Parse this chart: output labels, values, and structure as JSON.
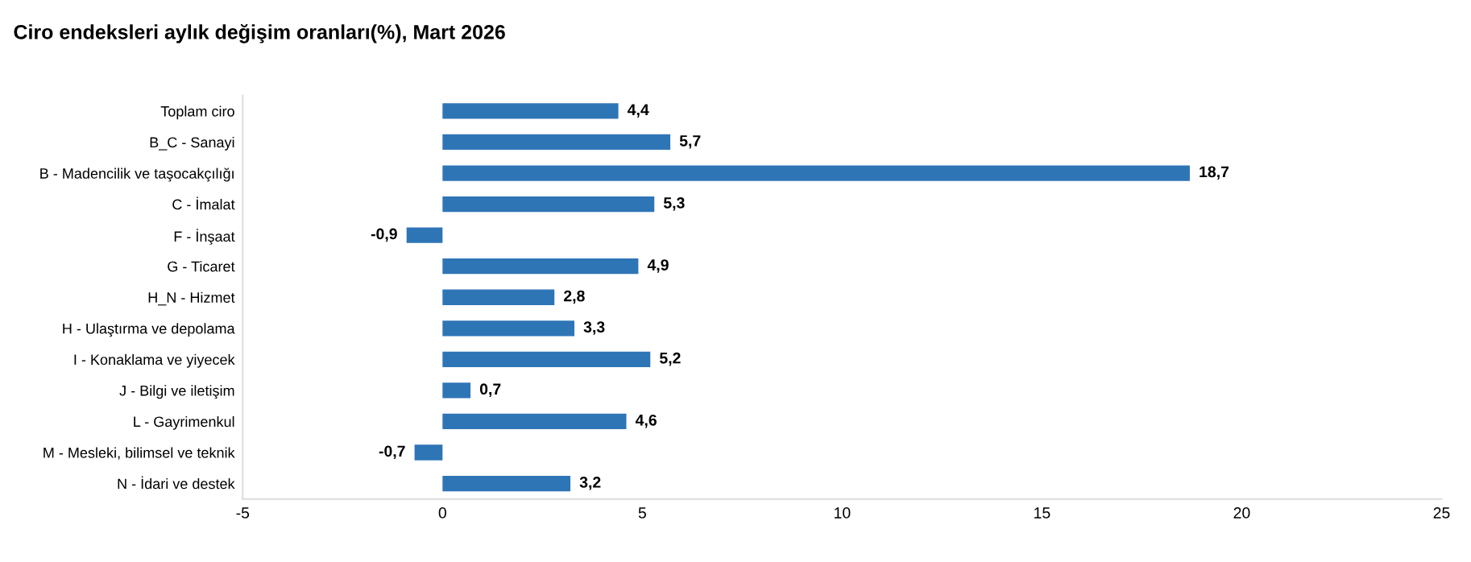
{
  "chart_data": {
    "type": "bar",
    "orientation": "horizontal",
    "title": "Ciro endeksleri aylık değişim oranları(%), Mart 2026",
    "categories": [
      "Toplam ciro",
      "B_C - Sanayi",
      "B - Madencilik ve taşocakçılığı",
      "C - İmalat",
      "F - İnşaat",
      "G - Ticaret",
      "H_N - Hizmet",
      "H - Ulaştırma ve depolama",
      "I - Konaklama ve yiyecek",
      "J - Bilgi ve iletişim",
      "L - Gayrimenkul",
      "M - Mesleki, bilimsel ve teknik",
      "N - İdari ve destek"
    ],
    "values": [
      4.4,
      5.7,
      18.7,
      5.3,
      -0.9,
      4.9,
      2.8,
      3.3,
      5.2,
      0.7,
      4.6,
      -0.7,
      3.2
    ],
    "value_labels": [
      "4,4",
      "5,7",
      "18,7",
      "5,3",
      "-0,9",
      "4,9",
      "2,8",
      "3,3",
      "5,2",
      "0,7",
      "4,6",
      "-0,7",
      "3,2"
    ],
    "color": "#2e75b6",
    "xlim": [
      -5,
      25
    ],
    "xticks": [
      -5,
      0,
      5,
      10,
      15,
      20,
      25
    ],
    "grid": false,
    "legend": false
  }
}
